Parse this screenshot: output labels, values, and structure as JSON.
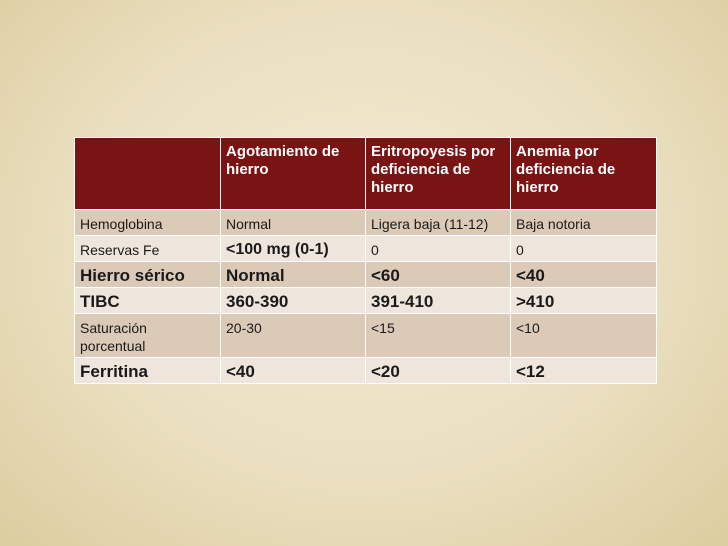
{
  "table": {
    "header": [
      "",
      "Agotamiento de hierro",
      "Eritropoyesis por deficiencia de hierro",
      "Anemia por deficiencia de hierro"
    ],
    "rows": [
      {
        "cells": [
          "Hemoglobina",
          "Normal",
          "Ligera baja (11-12)",
          "Baja notoria"
        ],
        "styles": [
          "sm",
          "sm",
          "sm",
          "sm"
        ]
      },
      {
        "cells": [
          "Reservas Fe",
          "<100 mg (0-1)",
          "0",
          "0"
        ],
        "styles": [
          "sm",
          "md",
          "sm",
          "sm"
        ]
      },
      {
        "cells": [
          "Hierro sérico",
          "Normal",
          "<60",
          "<40"
        ],
        "styles": [
          "lg",
          "lg",
          "lg",
          "lg"
        ]
      },
      {
        "cells": [
          "TIBC",
          "360-390",
          "391-410",
          ">410"
        ],
        "styles": [
          "lg",
          "lg",
          "lg",
          "lg"
        ]
      },
      {
        "cells": [
          "Saturación porcentual",
          "20-30",
          "<15",
          "<10"
        ],
        "styles": [
          "sm",
          "sm",
          "sm",
          "sm"
        ]
      },
      {
        "cells": [
          "Ferritina",
          "<40",
          "<20",
          "<12"
        ],
        "styles": [
          "lg",
          "lg",
          "lg",
          "lg"
        ]
      }
    ]
  }
}
